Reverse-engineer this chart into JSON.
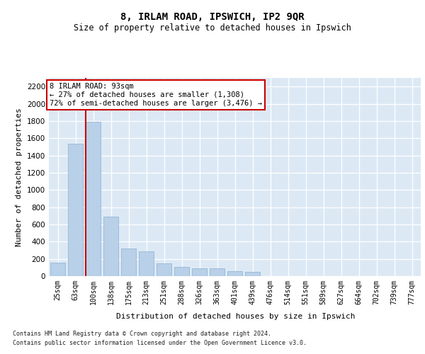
{
  "title_line1": "8, IRLAM ROAD, IPSWICH, IP2 9QR",
  "title_line2": "Size of property relative to detached houses in Ipswich",
  "xlabel": "Distribution of detached houses by size in Ipswich",
  "ylabel": "Number of detached properties",
  "categories": [
    "25sqm",
    "63sqm",
    "100sqm",
    "138sqm",
    "175sqm",
    "213sqm",
    "251sqm",
    "288sqm",
    "326sqm",
    "363sqm",
    "401sqm",
    "439sqm",
    "476sqm",
    "514sqm",
    "551sqm",
    "589sqm",
    "627sqm",
    "664sqm",
    "702sqm",
    "739sqm",
    "777sqm"
  ],
  "values": [
    155,
    1540,
    1790,
    690,
    320,
    290,
    145,
    110,
    90,
    90,
    55,
    50,
    0,
    0,
    0,
    0,
    0,
    0,
    0,
    0,
    0
  ],
  "bar_color": "#b8d0e8",
  "bar_edge_color": "#8ab0d0",
  "vline_color": "#cc0000",
  "annotation_text": "8 IRLAM ROAD: 93sqm\n← 27% of detached houses are smaller (1,308)\n72% of semi-detached houses are larger (3,476) →",
  "ylim_max": 2300,
  "yticks": [
    0,
    200,
    400,
    600,
    800,
    1000,
    1200,
    1400,
    1600,
    1800,
    2000,
    2200
  ],
  "bg_color": "#dce9f5",
  "fig_bg": "#ffffff",
  "footer_line1": "Contains HM Land Registry data © Crown copyright and database right 2024.",
  "footer_line2": "Contains public sector information licensed under the Open Government Licence v3.0."
}
